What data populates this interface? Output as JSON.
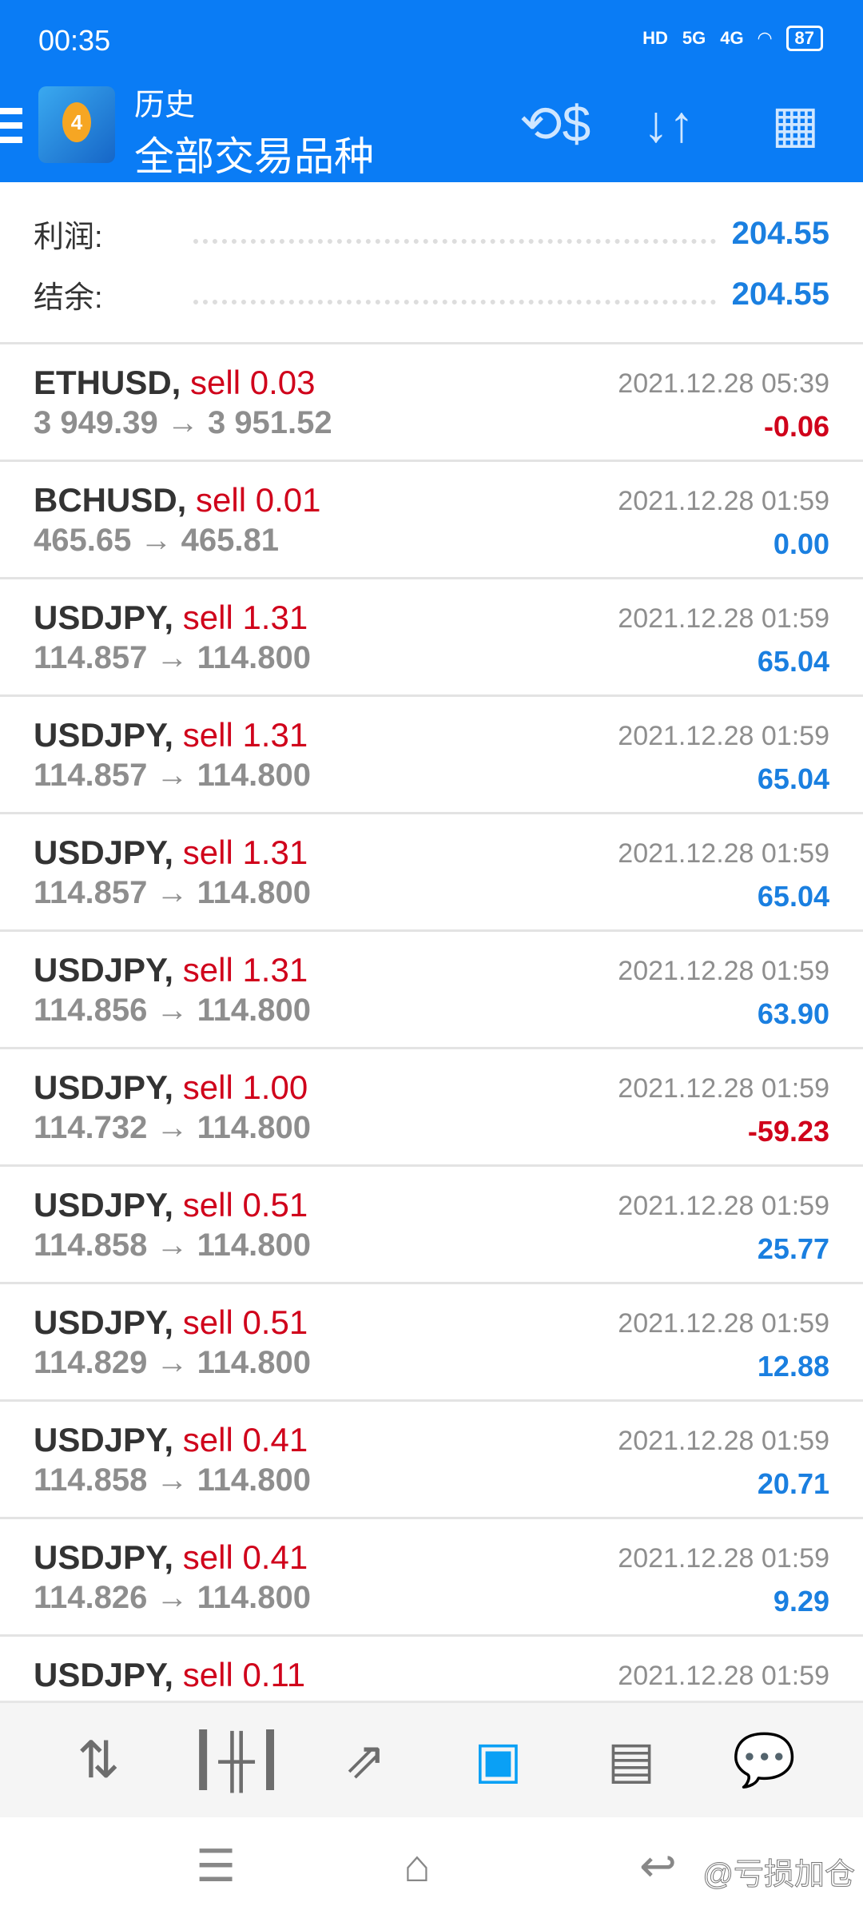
{
  "status_bar": {
    "time": "00:35",
    "network": [
      "HD",
      "5G",
      "4G"
    ],
    "battery": "87"
  },
  "header": {
    "subtitle": "历史",
    "title": "全部交易品种",
    "icons": [
      "menu-icon",
      "app-logo",
      "currency-exchange-icon",
      "sort-icon",
      "calendar-icon"
    ],
    "color": "#0a7cf5"
  },
  "summary": [
    {
      "label": "利润:",
      "value": "204.55"
    },
    {
      "label": "结余:",
      "value": "204.55"
    }
  ],
  "trades": [
    {
      "symbol": "ETHUSD,",
      "side": "sell 0.03",
      "open": "3 949.39",
      "close": "3 951.52",
      "time": "2021.12.28 05:39",
      "profit": "-0.06",
      "neg": true
    },
    {
      "symbol": "BCHUSD,",
      "side": "sell 0.01",
      "open": "465.65",
      "close": "465.81",
      "time": "2021.12.28 01:59",
      "profit": "0.00",
      "neg": false
    },
    {
      "symbol": "USDJPY,",
      "side": "sell 1.31",
      "open": "114.857",
      "close": "114.800",
      "time": "2021.12.28 01:59",
      "profit": "65.04",
      "neg": false
    },
    {
      "symbol": "USDJPY,",
      "side": "sell 1.31",
      "open": "114.857",
      "close": "114.800",
      "time": "2021.12.28 01:59",
      "profit": "65.04",
      "neg": false
    },
    {
      "symbol": "USDJPY,",
      "side": "sell 1.31",
      "open": "114.857",
      "close": "114.800",
      "time": "2021.12.28 01:59",
      "profit": "65.04",
      "neg": false
    },
    {
      "symbol": "USDJPY,",
      "side": "sell 1.31",
      "open": "114.856",
      "close": "114.800",
      "time": "2021.12.28 01:59",
      "profit": "63.90",
      "neg": false
    },
    {
      "symbol": "USDJPY,",
      "side": "sell 1.00",
      "open": "114.732",
      "close": "114.800",
      "time": "2021.12.28 01:59",
      "profit": "-59.23",
      "neg": true
    },
    {
      "symbol": "USDJPY,",
      "side": "sell 0.51",
      "open": "114.858",
      "close": "114.800",
      "time": "2021.12.28 01:59",
      "profit": "25.77",
      "neg": false
    },
    {
      "symbol": "USDJPY,",
      "side": "sell 0.51",
      "open": "114.829",
      "close": "114.800",
      "time": "2021.12.28 01:59",
      "profit": "12.88",
      "neg": false
    },
    {
      "symbol": "USDJPY,",
      "side": "sell 0.41",
      "open": "114.858",
      "close": "114.800",
      "time": "2021.12.28 01:59",
      "profit": "20.71",
      "neg": false
    },
    {
      "symbol": "USDJPY,",
      "side": "sell 0.41",
      "open": "114.826",
      "close": "114.800",
      "time": "2021.12.28 01:59",
      "profit": "9.29",
      "neg": false
    },
    {
      "symbol": "USDJPY,",
      "side": "sell 0.11",
      "open": "",
      "close": "",
      "time": "2021.12.28 01:59",
      "profit": "",
      "neg": false
    }
  ],
  "arrow": "→",
  "bottom_nav": [
    {
      "icon": "quotes-icon"
    },
    {
      "icon": "chart-icon"
    },
    {
      "icon": "trade-icon"
    },
    {
      "icon": "history-icon",
      "active": true
    },
    {
      "icon": "news-icon"
    },
    {
      "icon": "chat-icon"
    }
  ],
  "watermark": "@亏损加仓"
}
